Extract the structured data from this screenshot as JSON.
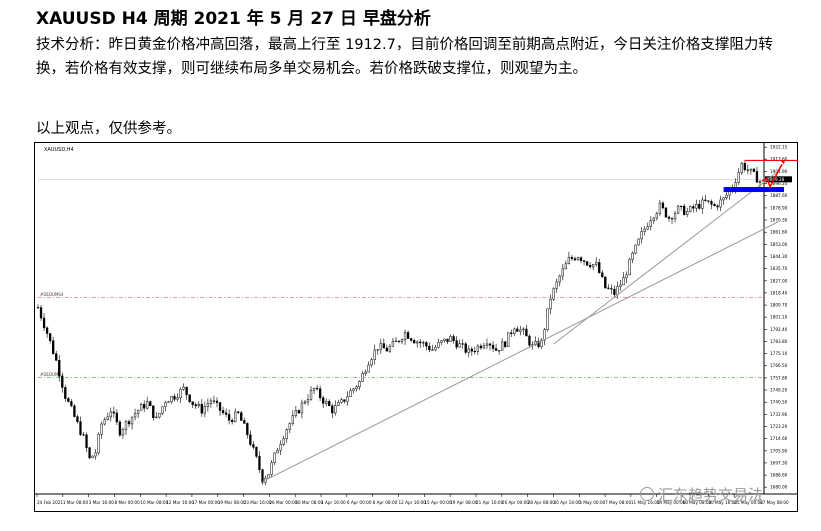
{
  "header": {
    "title": "XAUUSD    H4 周期    2021 年 5 月 27 日  早盘分析",
    "analysis": "技术分析：昨日黄金价格冲高回落，最高上行至  1912.7，目前价格回调至前期高点附近，今日关注价格支撑阻力转换，若价格有效支撑，则可继续布局多单交易机会。若价格跌破支撑位，则观望为主。",
    "disclaimer": "以上观点，仅供参考。"
  },
  "watermark": {
    "text": "汇东趋势交易法",
    "icon": "wechat-channel-icon"
  },
  "chart_data": {
    "type": "candlestick",
    "symbol_label": "XAUUSD,H4",
    "ylim": [
      1678,
      1923
    ],
    "y_ticks": [
      1922.15,
      1913.6,
      1904.9,
      1896.2,
      1887.6,
      1878.9,
      1870.3,
      1861.6,
      1853.0,
      1844.3,
      1835.7,
      1827.0,
      1818.4,
      1809.7,
      1801.1,
      1792.4,
      1783.8,
      1775.1,
      1766.5,
      1757.8,
      1749.2,
      1740.5,
      1731.9,
      1723.2,
      1714.6,
      1705.9,
      1697.3,
      1688.6,
      1680.0
    ],
    "current_price_label": "1899.28",
    "current_price": 1899.28,
    "x_ticks": [
      "24 Feb 2021",
      "1 Mar 08:00",
      "3 Mar 16:00",
      "8 Mar 00:00",
      "10 Mar 08:00",
      "12 Mar 16:00",
      "17 Mar 00:00",
      "19 Mar 08:00",
      "23 Mar 16:00",
      "26 Mar 00:00",
      "30 Mar 08:00",
      "1 Apr 16:00",
      "6 Apr 00:00",
      "8 Apr 08:00",
      "12 Apr 16:00",
      "15 Apr 00:00",
      "19 Apr 08:00",
      "21 Apr 16:00",
      "26 Apr 00:00",
      "28 Apr 08:00",
      "30 Apr 16:00",
      "5 May 00:00",
      "7 May 08:00",
      "11 May 16:00",
      "14 May 00:00",
      "18 May 08:00",
      "20 May 16:00",
      "25 May 00:00",
      "27 May 08:00"
    ],
    "price_path": [
      [
        0,
        1808
      ],
      [
        3,
        1790
      ],
      [
        6,
        1770
      ],
      [
        9,
        1745
      ],
      [
        12,
        1730
      ],
      [
        15,
        1715
      ],
      [
        17,
        1700
      ],
      [
        19,
        1705
      ],
      [
        21,
        1725
      ],
      [
        24,
        1735
      ],
      [
        27,
        1720
      ],
      [
        30,
        1728
      ],
      [
        33,
        1735
      ],
      [
        36,
        1740
      ],
      [
        39,
        1728
      ],
      [
        42,
        1742
      ],
      [
        45,
        1745
      ],
      [
        48,
        1750
      ],
      [
        51,
        1740
      ],
      [
        54,
        1735
      ],
      [
        57,
        1742
      ],
      [
        60,
        1735
      ],
      [
        63,
        1728
      ],
      [
        66,
        1732
      ],
      [
        69,
        1718
      ],
      [
        72,
        1700
      ],
      [
        74,
        1686
      ],
      [
        76,
        1690
      ],
      [
        79,
        1708
      ],
      [
        82,
        1722
      ],
      [
        85,
        1732
      ],
      [
        88,
        1742
      ],
      [
        91,
        1750
      ],
      [
        94,
        1742
      ],
      [
        97,
        1735
      ],
      [
        100,
        1740
      ],
      [
        103,
        1748
      ],
      [
        106,
        1755
      ],
      [
        109,
        1770
      ],
      [
        112,
        1780
      ],
      [
        115,
        1778
      ],
      [
        118,
        1783
      ],
      [
        121,
        1790
      ],
      [
        124,
        1785
      ],
      [
        127,
        1782
      ],
      [
        130,
        1778
      ],
      [
        133,
        1783
      ],
      [
        136,
        1786
      ],
      [
        139,
        1781
      ],
      [
        142,
        1776
      ],
      [
        145,
        1780
      ],
      [
        148,
        1785
      ],
      [
        151,
        1778
      ],
      [
        154,
        1783
      ],
      [
        157,
        1795
      ],
      [
        160,
        1790
      ],
      [
        163,
        1780
      ],
      [
        166,
        1783
      ],
      [
        169,
        1815
      ],
      [
        172,
        1830
      ],
      [
        175,
        1842
      ],
      [
        178,
        1845
      ],
      [
        181,
        1840
      ],
      [
        184,
        1838
      ],
      [
        187,
        1822
      ],
      [
        190,
        1818
      ],
      [
        193,
        1828
      ],
      [
        196,
        1845
      ],
      [
        199,
        1860
      ],
      [
        202,
        1872
      ],
      [
        205,
        1880
      ],
      [
        208,
        1872
      ],
      [
        211,
        1878
      ],
      [
        214,
        1876
      ],
      [
        217,
        1880
      ],
      [
        220,
        1883
      ],
      [
        223,
        1880
      ],
      [
        226,
        1885
      ],
      [
        229,
        1894
      ],
      [
        232,
        1910
      ],
      [
        234,
        1906
      ],
      [
        236,
        1902
      ],
      [
        238,
        1898
      ]
    ],
    "series_count": 239,
    "annotations": {
      "level_upper_label": "#DEDUMS4",
      "level_upper": 1815,
      "level_lower_label": "#DEDUMS3",
      "level_lower": 1758,
      "resistance_high": 1912.7,
      "support_zone": 1892,
      "trendline_steep": {
        "from": [
          170,
          1782
        ],
        "to": [
          244,
          1905
        ]
      },
      "trendline_long": {
        "from": [
          74,
          1684
        ],
        "to": [
          244,
          1869
        ]
      }
    }
  },
  "colors": {
    "candle": "#000000",
    "support_bar": "#0000ff",
    "resistance_line": "#ff0000",
    "forecast_arrow": "#ff0000",
    "level_upper": "#e07b7b",
    "level_lower": "#4aa04a",
    "trendline": "#999999"
  }
}
